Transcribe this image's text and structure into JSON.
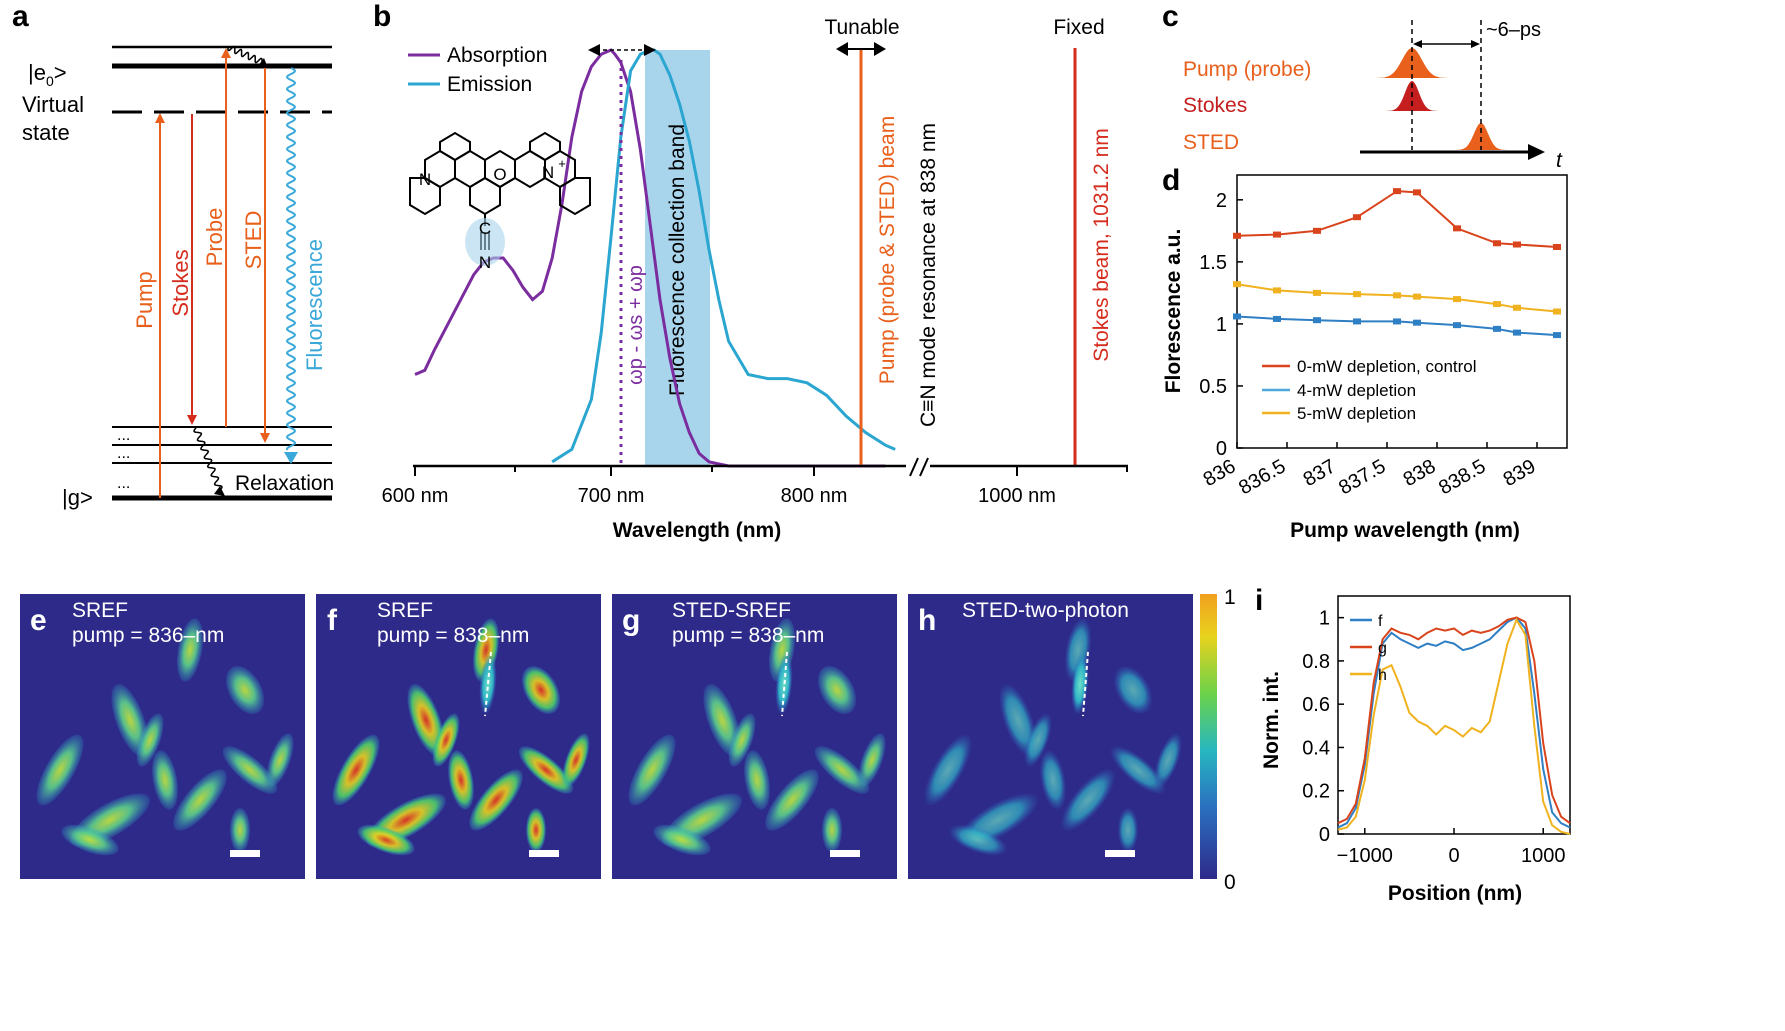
{
  "panel_labels": {
    "a": "a",
    "b": "b",
    "c": "c",
    "d": "d",
    "e": "e",
    "f": "f",
    "g": "g",
    "h": "h",
    "i": "i"
  },
  "panel_a": {
    "e0_prefix": "|e",
    "e0_sub": "0",
    "e0_suffix": ">",
    "virtual_line1": "Virtual",
    "virtual_line2": "state",
    "g_state": "|g>",
    "dots": "...",
    "pump": "Pump",
    "stokes": "Stokes",
    "probe": "Probe",
    "sted": "STED",
    "fluorescence": "Fluorescence",
    "relaxation": "Relaxation",
    "colors": {
      "orange": "#e8601c",
      "red": "#d62c1e",
      "blue": "#3aa8d8"
    }
  },
  "panel_b": {
    "legend_absorption": "Absorption",
    "legend_emission": "Emission",
    "tunable": "Tunable",
    "fixed": "Fixed",
    "band_label": "Fluorescence collection band",
    "omega_label": "ωp - ωs + ωp",
    "pump_beam": "Pump (probe & STED) beam",
    "cn_resonance": "C≡N mode resonance at 838 nm",
    "stokes_beam": "Stokes beam, 1031.2 nm",
    "xlabel": "Wavelength (nm)",
    "xticks": [
      "600 nm",
      "700 nm",
      "800 nm",
      "1000 nm"
    ],
    "molecule": {
      "n_left": "N",
      "o": "O",
      "n_right": "N",
      "plus": "+",
      "c": "C",
      "n_bottom": "N"
    },
    "colors": {
      "absorption": "#7b2c9e",
      "emission": "#2aa6d0",
      "band": "#a8d4ec",
      "pump": "#e8601c",
      "stokes": "#d62c1e"
    }
  },
  "panel_c": {
    "delay": "~6–ps",
    "pump_probe": "Pump (probe)",
    "stokes": "Stokes",
    "sted": "STED",
    "t": "t"
  },
  "chart_data": [
    {
      "type": "line",
      "id": "panel_b_spectra",
      "xlabel": "Wavelength (nm)",
      "series": [
        {
          "name": "Absorption",
          "x": [
            600,
            605,
            610,
            620,
            630,
            635,
            640,
            645,
            650,
            655,
            660,
            665,
            670,
            675,
            680,
            685,
            690,
            695,
            700,
            702,
            705,
            710,
            715,
            720,
            725,
            730,
            735,
            740,
            745,
            750,
            760,
            770,
            780,
            790,
            800,
            810,
            820,
            830,
            840
          ],
          "y": [
            0.22,
            0.23,
            0.28,
            0.37,
            0.46,
            0.49,
            0.5,
            0.5,
            0.47,
            0.43,
            0.4,
            0.42,
            0.5,
            0.63,
            0.79,
            0.9,
            0.96,
            0.99,
            1.0,
            0.99,
            0.97,
            0.9,
            0.76,
            0.58,
            0.4,
            0.26,
            0.15,
            0.08,
            0.03,
            0.01,
            0.0,
            0.0,
            0.0,
            0.0,
            0.0,
            0.0,
            0.0,
            0.0,
            0.0
          ]
        },
        {
          "name": "Emission",
          "x": [
            670,
            680,
            690,
            695,
            700,
            705,
            710,
            715,
            720,
            722,
            725,
            730,
            735,
            740,
            745,
            750,
            755,
            760,
            770,
            780,
            790,
            800,
            810,
            820,
            830,
            840,
            845
          ],
          "y": [
            0.01,
            0.04,
            0.16,
            0.32,
            0.55,
            0.79,
            0.95,
            0.99,
            1.0,
            1.0,
            0.99,
            0.94,
            0.87,
            0.78,
            0.66,
            0.52,
            0.4,
            0.3,
            0.22,
            0.21,
            0.21,
            0.2,
            0.17,
            0.12,
            0.08,
            0.05,
            0.04
          ]
        }
      ]
    },
    {
      "type": "line",
      "id": "panel_d",
      "xlabel": "Pump wavelength (nm)",
      "ylabel": "Florescence a.u.",
      "xticks": [
        "836",
        "836.5",
        "837",
        "837.5",
        "838",
        "838.5",
        "839"
      ],
      "yticks": [
        "0",
        "0.5",
        "1",
        "1.5",
        "2"
      ],
      "xlim": [
        836,
        839.3
      ],
      "ylim": [
        0,
        2.2
      ],
      "series": [
        {
          "name": "0-mW depletion, control",
          "color": "#d9441c",
          "x": [
            836,
            836.4,
            836.8,
            837.2,
            837.6,
            837.8,
            838.2,
            838.6,
            838.8,
            839.2
          ],
          "y": [
            1.71,
            1.72,
            1.75,
            1.86,
            2.07,
            2.06,
            1.77,
            1.65,
            1.64,
            1.62
          ]
        },
        {
          "name": "4-mW depletion",
          "color": "#2f7fc4",
          "x": [
            836,
            836.4,
            836.8,
            837.2,
            837.6,
            837.8,
            838.2,
            838.6,
            838.8,
            839.2
          ],
          "y": [
            1.06,
            1.04,
            1.03,
            1.02,
            1.02,
            1.01,
            0.99,
            0.96,
            0.93,
            0.91
          ]
        },
        {
          "name": "5-mW depletion",
          "color": "#f0b21e",
          "x": [
            836,
            836.4,
            836.8,
            837.2,
            837.6,
            837.8,
            838.2,
            838.6,
            838.8,
            839.2
          ],
          "y": [
            1.32,
            1.27,
            1.25,
            1.24,
            1.23,
            1.22,
            1.2,
            1.16,
            1.13,
            1.1
          ]
        }
      ]
    },
    {
      "type": "line",
      "id": "panel_i",
      "xlabel": "Position (nm)",
      "ylabel": "Norm. int.",
      "xticks": [
        "-1000",
        "0",
        "1000"
      ],
      "yticks": [
        "0",
        "0.2",
        "0.4",
        "0.6",
        "0.8",
        "1"
      ],
      "xlim": [
        -1300,
        1300
      ],
      "ylim": [
        0,
        1.1
      ],
      "series": [
        {
          "name": "f",
          "color": "#2f7fc4",
          "x": [
            -1300,
            -1200,
            -1100,
            -1000,
            -900,
            -800,
            -700,
            -600,
            -500,
            -400,
            -300,
            -200,
            -100,
            0,
            100,
            200,
            300,
            400,
            500,
            600,
            700,
            800,
            900,
            1000,
            1100,
            1200,
            1300
          ],
          "y": [
            0.03,
            0.05,
            0.12,
            0.32,
            0.65,
            0.88,
            0.93,
            0.9,
            0.88,
            0.86,
            0.88,
            0.87,
            0.89,
            0.88,
            0.85,
            0.86,
            0.88,
            0.9,
            0.94,
            0.98,
            1.0,
            0.95,
            0.65,
            0.3,
            0.1,
            0.05,
            0.03
          ]
        },
        {
          "name": "g",
          "color": "#d9441c",
          "x": [
            -1300,
            -1200,
            -1100,
            -1000,
            -900,
            -800,
            -700,
            -600,
            -500,
            -400,
            -300,
            -200,
            -100,
            0,
            100,
            200,
            300,
            400,
            500,
            600,
            700,
            800,
            900,
            1000,
            1100,
            1200,
            1300
          ],
          "y": [
            0.05,
            0.07,
            0.14,
            0.35,
            0.7,
            0.9,
            0.95,
            0.93,
            0.92,
            0.9,
            0.93,
            0.95,
            0.94,
            0.95,
            0.92,
            0.94,
            0.93,
            0.94,
            0.96,
            0.99,
            1.0,
            0.98,
            0.8,
            0.42,
            0.18,
            0.08,
            0.05
          ]
        },
        {
          "name": "h",
          "color": "#f0b21e",
          "x": [
            -1300,
            -1200,
            -1100,
            -1000,
            -900,
            -800,
            -700,
            -600,
            -500,
            -400,
            -300,
            -200,
            -100,
            0,
            100,
            200,
            300,
            400,
            500,
            600,
            700,
            800,
            900,
            1000,
            1100,
            1200,
            1300
          ],
          "y": [
            0.02,
            0.03,
            0.08,
            0.25,
            0.55,
            0.76,
            0.78,
            0.68,
            0.56,
            0.52,
            0.5,
            0.46,
            0.5,
            0.48,
            0.45,
            0.49,
            0.47,
            0.52,
            0.7,
            0.88,
            0.99,
            0.92,
            0.5,
            0.15,
            0.04,
            0.01,
            0.0
          ]
        }
      ]
    }
  ],
  "panel_d_legend": [
    "0-mW depletion, control",
    "4-mW depletion",
    "5-mW depletion"
  ],
  "images": {
    "e_line1": "SREF",
    "e_line2": "pump = 836–nm",
    "f_line1": "SREF",
    "f_line2": "pump = 838–nm",
    "g_line1": "STED-SREF",
    "g_line2": "pump = 838–nm",
    "h_line1": "STED-two-photon",
    "colorbar_max": "1",
    "colorbar_min": "0",
    "background_color": "#2e2a8a"
  }
}
